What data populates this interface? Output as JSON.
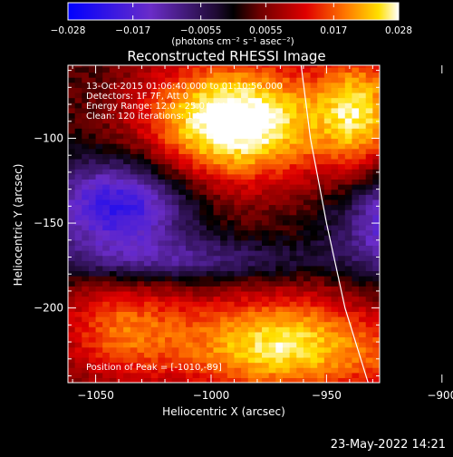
{
  "chart_data": {
    "type": "heatmap",
    "title": "Reconstructed RHESSI Image",
    "xlabel": "Heliocentric X (arcsec)",
    "ylabel": "Heliocentric Y (arcsec)",
    "xlim": [
      -1062,
      -927
    ],
    "ylim": [
      -244,
      -57
    ],
    "x_ticks": [
      -1050,
      -1000,
      -950,
      -900
    ],
    "x_tick_labels": [
      "−1050",
      "−1000",
      "−950",
      "−900"
    ],
    "y_ticks": [
      -100,
      -150,
      -200
    ],
    "y_tick_labels": [
      "−100",
      "−150",
      "−200"
    ],
    "colorbar": {
      "min": -0.028,
      "max": 0.028,
      "ticks": [
        -0.028,
        -0.017,
        -0.0055,
        0.0055,
        0.017,
        0.028
      ],
      "tick_labels": [
        "−0.028",
        "−0.017",
        "−0.0055",
        "0.0055",
        "0.017",
        "0.028"
      ],
      "unit_label": "(photons cm⁻² s⁻¹ asec⁻²)"
    },
    "blobs": [
      {
        "x": -990,
        "y": -90,
        "sx": 28,
        "sy": 26,
        "amp": 0.03
      },
      {
        "x": -935,
        "y": -85,
        "sx": 14,
        "sy": 28,
        "amp": 0.02
      },
      {
        "x": -1040,
        "y": -212,
        "sx": 20,
        "sy": 22,
        "amp": 0.014
      },
      {
        "x": -970,
        "y": -222,
        "sx": 34,
        "sy": 22,
        "amp": 0.024
      },
      {
        "x": -1040,
        "y": -140,
        "sx": 22,
        "sy": 20,
        "amp": -0.024
      },
      {
        "x": -915,
        "y": -148,
        "sx": 20,
        "sy": 22,
        "amp": -0.024
      },
      {
        "x": -1010,
        "y": -172,
        "sx": 42,
        "sy": 9,
        "amp": -0.011
      },
      {
        "x": -900,
        "y": -230,
        "sx": 22,
        "sy": 16,
        "amp": 0.01
      }
    ],
    "limb_curve": [
      {
        "x": -961,
        "y": -57
      },
      {
        "x": -957,
        "y": -100
      },
      {
        "x": -950,
        "y": -150
      },
      {
        "x": -942,
        "y": -200
      },
      {
        "x": -932,
        "y": -244
      }
    ],
    "peak_position": [
      -1010,
      -89
    ]
  },
  "annotations": {
    "time_range": "13-Oct-2015 01:06:40.000 to 01:10:56.000",
    "detectors": "Detectors: 1F 7F, Att 0",
    "energy": "Energy Range: 12.0 - 25.0 keV",
    "clean": "Clean: 120 iterations: 1.16E+04",
    "peak": "Position of Peak = [-1010,-89]"
  },
  "footer_date": "23-May-2022 14:21",
  "colors": {
    "background": "#000000",
    "text": "#ffffff",
    "limb": "#ffffff"
  }
}
